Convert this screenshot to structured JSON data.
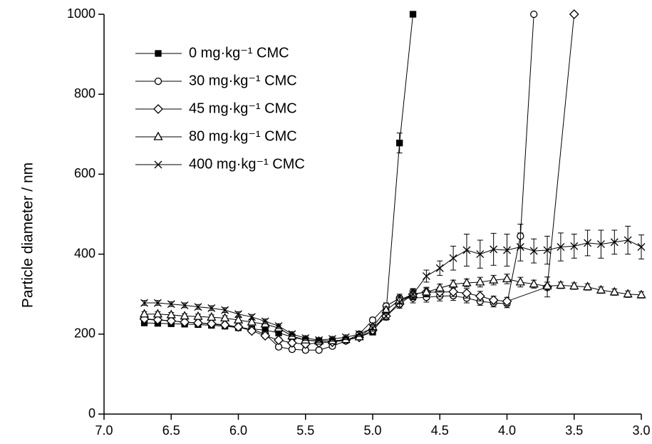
{
  "chart_data": {
    "type": "line",
    "ylabel": "Particle diameter / nm",
    "xlim": [
      7,
      3
    ],
    "ylim": [
      0,
      1000
    ],
    "xticks": [
      {
        "value": 7,
        "label": "7.0"
      },
      6.5,
      {
        "value": 6,
        "label": "6.0"
      },
      5.5,
      {
        "value": 5,
        "label": "5.0"
      },
      4.5,
      {
        "value": 4,
        "label": "4.0"
      },
      3.5,
      {
        "value": 3,
        "label": "3.0"
      }
    ],
    "yticks": [
      0,
      200,
      400,
      600,
      800,
      1000
    ],
    "legend": "upper left",
    "series": [
      {
        "name": "0 mg·kg⁻¹ CMC",
        "color": "#000000",
        "marker": "square",
        "x": [
          6.7,
          6.6,
          6.5,
          6.4,
          6.3,
          6.2,
          6.1,
          6.0,
          5.9,
          5.8,
          5.7,
          5.6,
          5.5,
          5.4,
          5.3,
          5.2,
          5.1,
          5.0,
          4.9,
          4.8,
          4.7
        ],
        "values": [
          228,
          227,
          226,
          225,
          224,
          222,
          220,
          216,
          213,
          210,
          203,
          193,
          185,
          183,
          183,
          186,
          193,
          205,
          255,
          678,
          1000
        ],
        "errors": [
          6,
          6,
          6,
          6,
          6,
          6,
          6,
          6,
          6,
          6,
          6,
          6,
          6,
          6,
          6,
          6,
          6,
          6,
          8,
          25,
          0
        ]
      },
      {
        "name": "30 mg·kg⁻¹ CMC",
        "color": "#000000",
        "marker": "circle",
        "x": [
          6.7,
          6.6,
          6.5,
          6.4,
          6.3,
          6.2,
          6.1,
          6.0,
          5.9,
          5.8,
          5.7,
          5.6,
          5.5,
          5.4,
          5.3,
          5.2,
          5.1,
          5.0,
          4.9,
          4.8,
          4.7,
          4.6,
          4.5,
          4.4,
          4.3,
          4.2,
          4.1,
          4.0,
          3.9,
          3.8
        ],
        "values": [
          237,
          235,
          233,
          230,
          228,
          225,
          222,
          218,
          212,
          200,
          168,
          162,
          160,
          160,
          170,
          183,
          200,
          235,
          270,
          290,
          290,
          292,
          295,
          296,
          290,
          282,
          278,
          276,
          445,
          1000
        ],
        "errors": [
          6,
          6,
          6,
          6,
          6,
          6,
          6,
          6,
          6,
          6,
          6,
          6,
          6,
          6,
          6,
          6,
          6,
          6,
          8,
          10,
          12,
          12,
          12,
          12,
          12,
          10,
          10,
          10,
          30,
          0
        ]
      },
      {
        "name": "45 mg·kg⁻¹ CMC",
        "color": "#000000",
        "marker": "diamond",
        "x": [
          6.7,
          6.6,
          6.5,
          6.4,
          6.3,
          6.2,
          6.1,
          6.0,
          5.9,
          5.8,
          5.7,
          5.6,
          5.5,
          5.4,
          5.3,
          5.2,
          5.1,
          5.0,
          4.9,
          4.8,
          4.7,
          4.6,
          4.5,
          4.4,
          4.3,
          4.2,
          4.1,
          4.0,
          3.7,
          3.5
        ],
        "values": [
          238,
          236,
          233,
          230,
          228,
          226,
          223,
          218,
          208,
          196,
          185,
          178,
          175,
          178,
          180,
          185,
          192,
          210,
          245,
          275,
          300,
          305,
          305,
          306,
          302,
          295,
          285,
          282,
          318,
          1000
        ],
        "errors": [
          6,
          6,
          6,
          6,
          6,
          6,
          6,
          6,
          6,
          6,
          6,
          6,
          6,
          6,
          6,
          6,
          6,
          6,
          8,
          10,
          12,
          12,
          12,
          12,
          12,
          12,
          10,
          10,
          25,
          0
        ]
      },
      {
        "name": "80 mg·kg⁻¹ CMC",
        "color": "#000000",
        "marker": "triangle",
        "x": [
          6.7,
          6.6,
          6.5,
          6.4,
          6.3,
          6.2,
          6.1,
          6.0,
          5.9,
          5.8,
          5.7,
          5.6,
          5.5,
          5.4,
          5.3,
          5.2,
          5.1,
          5.0,
          4.9,
          4.8,
          4.7,
          4.6,
          4.5,
          4.4,
          4.3,
          4.2,
          4.1,
          4.0,
          3.9,
          3.8,
          3.7,
          3.6,
          3.5,
          3.4,
          3.3,
          3.2,
          3.1,
          3.0
        ],
        "values": [
          250,
          250,
          248,
          245,
          244,
          242,
          240,
          235,
          230,
          225,
          215,
          195,
          185,
          182,
          183,
          186,
          193,
          218,
          260,
          285,
          300,
          305,
          315,
          325,
          328,
          330,
          335,
          338,
          330,
          325,
          320,
          322,
          320,
          318,
          310,
          305,
          300,
          298
        ],
        "errors": [
          6,
          6,
          6,
          6,
          6,
          6,
          6,
          6,
          6,
          6,
          6,
          6,
          6,
          6,
          6,
          6,
          6,
          6,
          8,
          10,
          10,
          10,
          10,
          10,
          10,
          12,
          12,
          12,
          12,
          10,
          10,
          8,
          8,
          8,
          8,
          8,
          8,
          8
        ]
      },
      {
        "name": "400 mg·kg⁻¹ CMC",
        "color": "#000000",
        "marker": "cross",
        "x": [
          6.7,
          6.6,
          6.5,
          6.4,
          6.3,
          6.2,
          6.1,
          6.0,
          5.9,
          5.8,
          5.7,
          5.6,
          5.5,
          5.4,
          5.3,
          5.2,
          5.1,
          5.0,
          4.9,
          4.8,
          4.7,
          4.6,
          4.5,
          4.4,
          4.3,
          4.2,
          4.1,
          4.0,
          3.9,
          3.8,
          3.7,
          3.6,
          3.5,
          3.4,
          3.3,
          3.2,
          3.1,
          3.0
        ],
        "values": [
          278,
          278,
          275,
          272,
          268,
          265,
          260,
          250,
          243,
          232,
          220,
          200,
          190,
          185,
          188,
          192,
          200,
          215,
          245,
          280,
          300,
          345,
          365,
          390,
          410,
          400,
          412,
          410,
          418,
          408,
          410,
          418,
          420,
          428,
          425,
          430,
          435,
          418
        ],
        "errors": [
          6,
          6,
          6,
          6,
          6,
          6,
          6,
          6,
          6,
          6,
          6,
          6,
          6,
          6,
          6,
          6,
          6,
          8,
          10,
          12,
          14,
          15,
          18,
          30,
          40,
          35,
          40,
          40,
          35,
          30,
          35,
          35,
          30,
          32,
          35,
          30,
          35,
          30
        ]
      }
    ]
  }
}
